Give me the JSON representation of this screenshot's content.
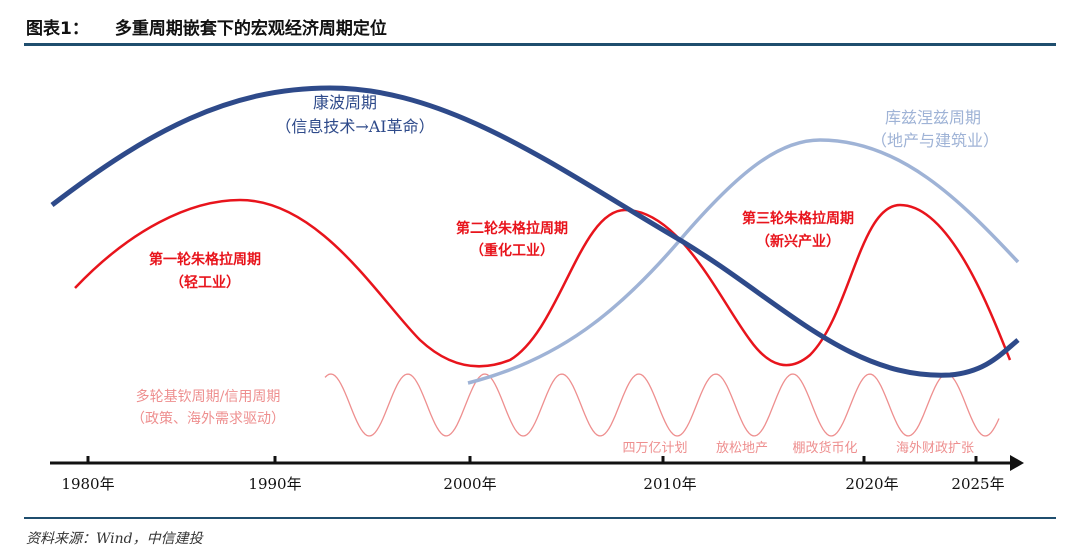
{
  "title": {
    "label": "图表1：",
    "text": "多重周期嵌套下的宏观经济周期定位"
  },
  "cycles": {
    "kondratiev": {
      "name": "康波周期",
      "sub": "（信息技术→AI革命）",
      "color": "#2e4a8a"
    },
    "kuznets": {
      "name": "库兹涅兹周期",
      "sub": "（地产与建筑业）",
      "color": "#9fb3d6"
    },
    "juglar1": {
      "name": "第一轮朱格拉周期",
      "sub": "（轻工业）"
    },
    "juglar2": {
      "name": "第二轮朱格拉周期",
      "sub": "（重化工业）"
    },
    "juglar3": {
      "name": "第三轮朱格拉周期",
      "sub": "（新兴产业）"
    },
    "juglar_color": "#e8141c",
    "kitchin": {
      "name": "多轮基钦周期/信用周期",
      "sub": "（政策、海外需求驱动）",
      "color": "#ee8f8f"
    }
  },
  "events": [
    "四万亿计划",
    "放松地产",
    "棚改货币化",
    "海外财政扩张"
  ],
  "axis": [
    "1980年",
    "1990年",
    "2000年",
    "2010年",
    "2020年",
    "2025年"
  ],
  "source": "资料来源：Wind，中信建投"
}
